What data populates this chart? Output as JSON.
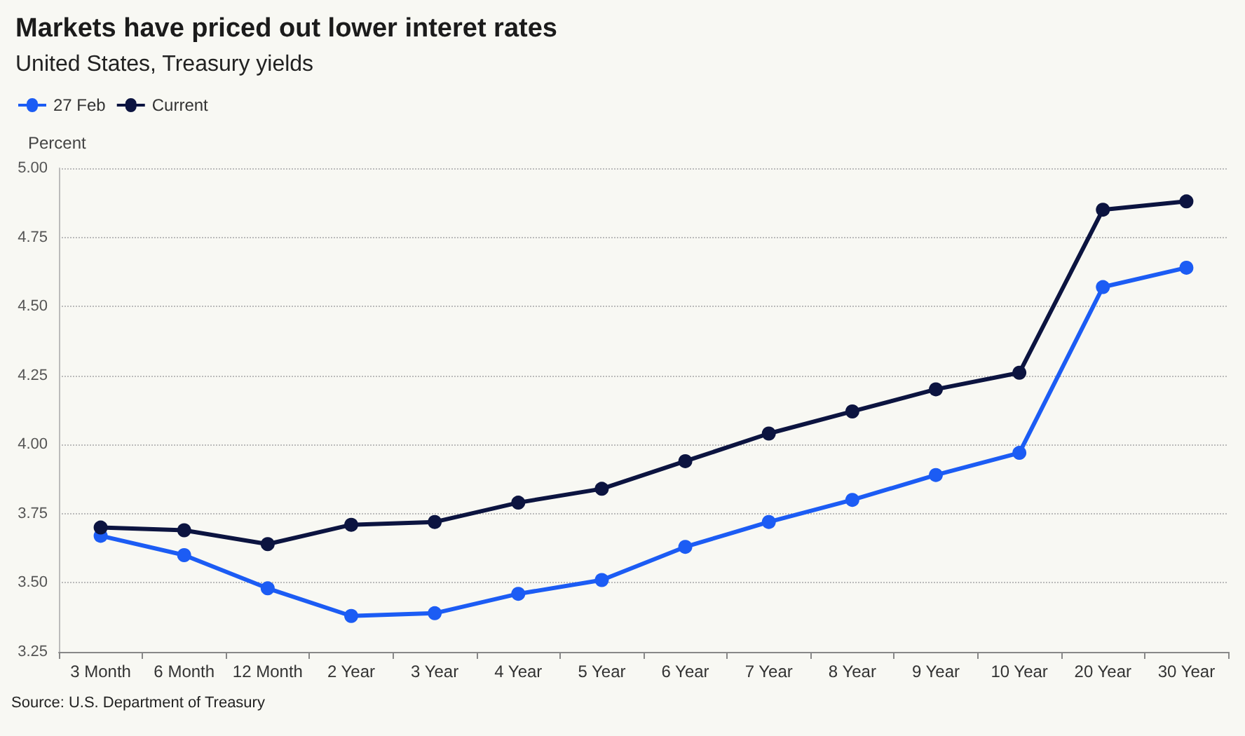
{
  "chart_data": {
    "type": "line",
    "title": "Markets have priced out lower interet rates",
    "subtitle": "United States, Treasury yields",
    "ylabel": "Percent",
    "categories": [
      "3 Month",
      "6 Month",
      "12 Month",
      "2 Year",
      "3 Year",
      "4 Year",
      "5 Year",
      "6 Year",
      "7 Year",
      "8 Year",
      "9 Year",
      "10 Year",
      "20 Year",
      "30 Year"
    ],
    "series": [
      {
        "name": "27 Feb",
        "color": "#1c5cf4",
        "values": [
          3.67,
          3.6,
          3.48,
          3.38,
          3.39,
          3.46,
          3.51,
          3.63,
          3.72,
          3.8,
          3.89,
          3.97,
          4.57,
          4.64
        ]
      },
      {
        "name": "Current",
        "color": "#0c1440",
        "values": [
          3.7,
          3.69,
          3.64,
          3.71,
          3.72,
          3.79,
          3.84,
          3.94,
          4.04,
          4.12,
          4.2,
          4.26,
          4.85,
          4.88
        ]
      }
    ],
    "ylim": [
      3.25,
      5.0
    ],
    "yticks": [
      {
        "value": 3.25,
        "label": "3.25"
      },
      {
        "value": 3.5,
        "label": "3.50"
      },
      {
        "value": 3.75,
        "label": "3.75"
      },
      {
        "value": 4.0,
        "label": "4.00"
      },
      {
        "value": 4.25,
        "label": "4.25"
      },
      {
        "value": 4.5,
        "label": "4.50"
      },
      {
        "value": 4.75,
        "label": "4.75"
      },
      {
        "value": 5.0,
        "label": "5.00"
      }
    ],
    "grid": "y",
    "legend": "top left",
    "marker": "circle",
    "line_style": "solid",
    "annotations": [
      "Source: U.S. Department of Treasury"
    ]
  }
}
